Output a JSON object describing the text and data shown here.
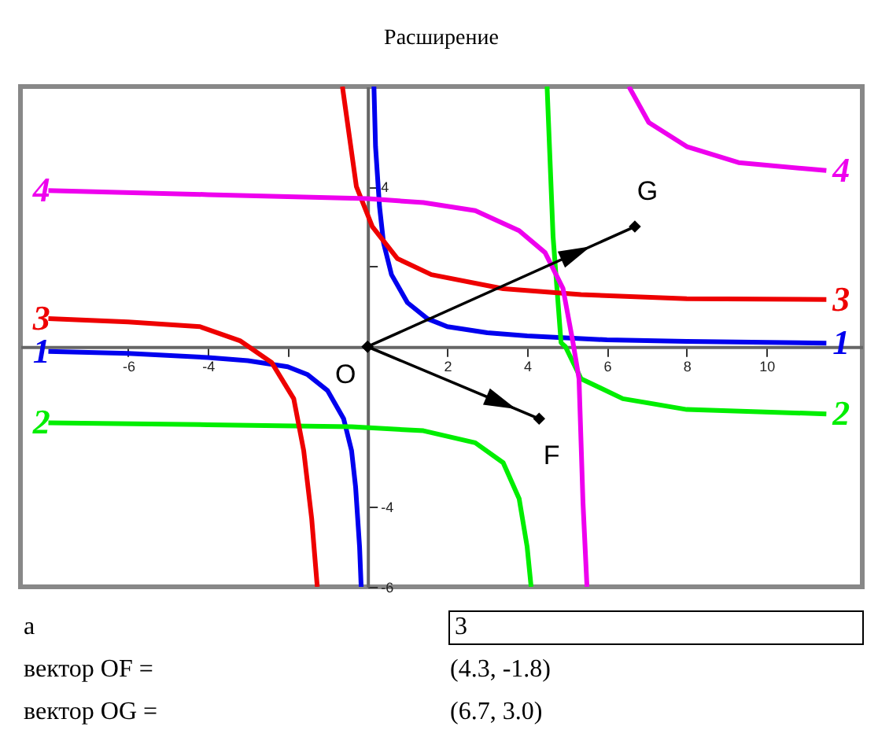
{
  "chart_data": {
    "type": "line",
    "title": "Расширение",
    "xlim": [
      -8.7,
      12.4
    ],
    "ylim": [
      -6,
      6.5
    ],
    "xticks": [
      -6,
      -4,
      {
        "value": -2,
        "label": null
      },
      2,
      4,
      6,
      8,
      10
    ],
    "yticks": [
      -6,
      -4,
      {
        "value": -2,
        "label": null
      },
      {
        "value": 2,
        "label": null
      },
      4
    ],
    "grid": false,
    "series": [
      {
        "name": "1",
        "color": "#0000ee",
        "x": [
          -8,
          -6,
          -4,
          -3,
          -2,
          -1.5,
          -1,
          -0.6,
          -0.4,
          -0.3,
          -0.2,
          -0.16,
          0,
          0.16,
          0.2,
          0.3,
          0.4,
          0.6,
          1,
          1.5,
          2,
          3,
          4,
          6,
          8,
          11.5
        ],
        "values": [
          -0.12,
          -0.17,
          -0.27,
          -0.35,
          -0.5,
          -0.7,
          -1.1,
          -1.8,
          -2.6,
          -3.5,
          -5,
          -6,
          null,
          6.5,
          5,
          3.5,
          2.6,
          1.8,
          1.1,
          0.7,
          0.5,
          0.35,
          0.27,
          0.17,
          0.13,
          0.09
        ]
      },
      {
        "name": "2",
        "color": "#00ee00",
        "x": [
          -8,
          -4,
          -0.4,
          1.4,
          2.7,
          3.4,
          3.8,
          4,
          4.1,
          4.3,
          4.5,
          4.65,
          4.85,
          4.96,
          5.35,
          6.4,
          8,
          11.5
        ],
        "values": [
          -1.9,
          -1.95,
          -2,
          -2.1,
          -2.4,
          -2.9,
          -3.8,
          -5,
          -6,
          null,
          6.5,
          2.75,
          0.1,
          0,
          -0.8,
          -1.3,
          -1.57,
          -1.68
        ]
      },
      {
        "name": "3",
        "color": "#ee0000",
        "x": [
          -8,
          -6,
          -4.2,
          -3.2,
          -2.4,
          -1.85,
          -1.6,
          -1.4,
          -1.26,
          -1,
          -0.63,
          -0.28,
          0.12,
          0.75,
          1.6,
          3.4,
          5.35,
          8,
          11.5
        ],
        "values": [
          0.7,
          0.62,
          0.5,
          0.15,
          -0.4,
          -1.3,
          -2.6,
          -4.3,
          -6,
          null,
          6.5,
          4,
          3,
          2.2,
          1.8,
          1.45,
          1.3,
          1.2,
          1.18
        ]
      },
      {
        "name": "4",
        "color": "#ee00ee",
        "x": [
          -8,
          -4,
          0,
          1.4,
          2.7,
          3.8,
          4.45,
          4.9,
          5.15,
          5.3,
          5.4,
          5.5,
          6,
          6.55,
          7.05,
          8,
          9.3,
          11.5
        ],
        "values": [
          3.9,
          3.8,
          3.7,
          3.6,
          3.4,
          2.9,
          2.35,
          1.45,
          0.1,
          -0.8,
          -3.9,
          -6,
          null,
          6.5,
          5.6,
          5,
          4.6,
          4.4
        ]
      },
      {
        "color": "#000000",
        "marker": "diamond",
        "x": [
          0,
          4.3
        ],
        "values": [
          0,
          -1.8
        ]
      },
      {
        "color": "#000000",
        "marker": "diamond",
        "x": [
          0,
          6.7
        ],
        "values": [
          0,
          3.0
        ]
      }
    ],
    "annotations": [
      {
        "text": "O",
        "x": 0,
        "y": 0
      },
      {
        "text": "F",
        "x": 4.3,
        "y": -1.8
      },
      {
        "text": "G",
        "x": 6.7,
        "y": 3.0
      },
      "a",
      "3",
      "вектор OF =",
      "(4.3, -1.8)",
      "вектор OG =",
      "(6.7, 3.0)"
    ]
  }
}
